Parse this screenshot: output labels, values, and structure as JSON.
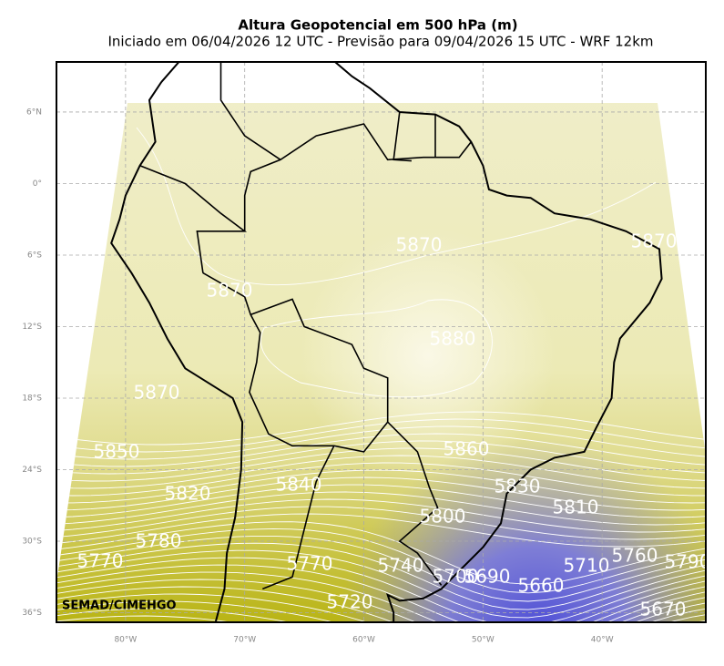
{
  "title": "Altura Geopotencial em 500 hPa (m)",
  "subtitle": "Iniciado em 06/04/2026 12 UTC - Previsão para 09/04/2026 15 UTC - WRF 12km",
  "credit": "SEMAD/CIMEHGO",
  "map": {
    "lon_range": [
      -85.8,
      -31.3
    ],
    "lat_range": [
      -36.8,
      10.2
    ],
    "grid": true,
    "lat_ticks": [
      {
        "value": 6,
        "label": "6°N"
      },
      {
        "value": 0,
        "label": "0°"
      },
      {
        "value": -6,
        "label": "6°S"
      },
      {
        "value": -12,
        "label": "12°S"
      },
      {
        "value": -18,
        "label": "18°S"
      },
      {
        "value": -24,
        "label": "24°S"
      },
      {
        "value": -30,
        "label": "30°S"
      },
      {
        "value": -36,
        "label": "36°S"
      }
    ],
    "lon_ticks": [
      {
        "value": -80,
        "label": "80°W"
      },
      {
        "value": -70,
        "label": "70°W"
      },
      {
        "value": -60,
        "label": "60°W"
      },
      {
        "value": -50,
        "label": "50°W"
      },
      {
        "value": -40,
        "label": "40°W"
      }
    ],
    "contour_labels": [
      5870,
      5870,
      5870,
      5880,
      5870,
      5850,
      5860,
      5840,
      5830,
      5820,
      5810,
      5800,
      5780,
      5770,
      5770,
      5740,
      5710,
      5760,
      5790,
      5700,
      5690,
      5660,
      5720,
      5670
    ]
  }
}
